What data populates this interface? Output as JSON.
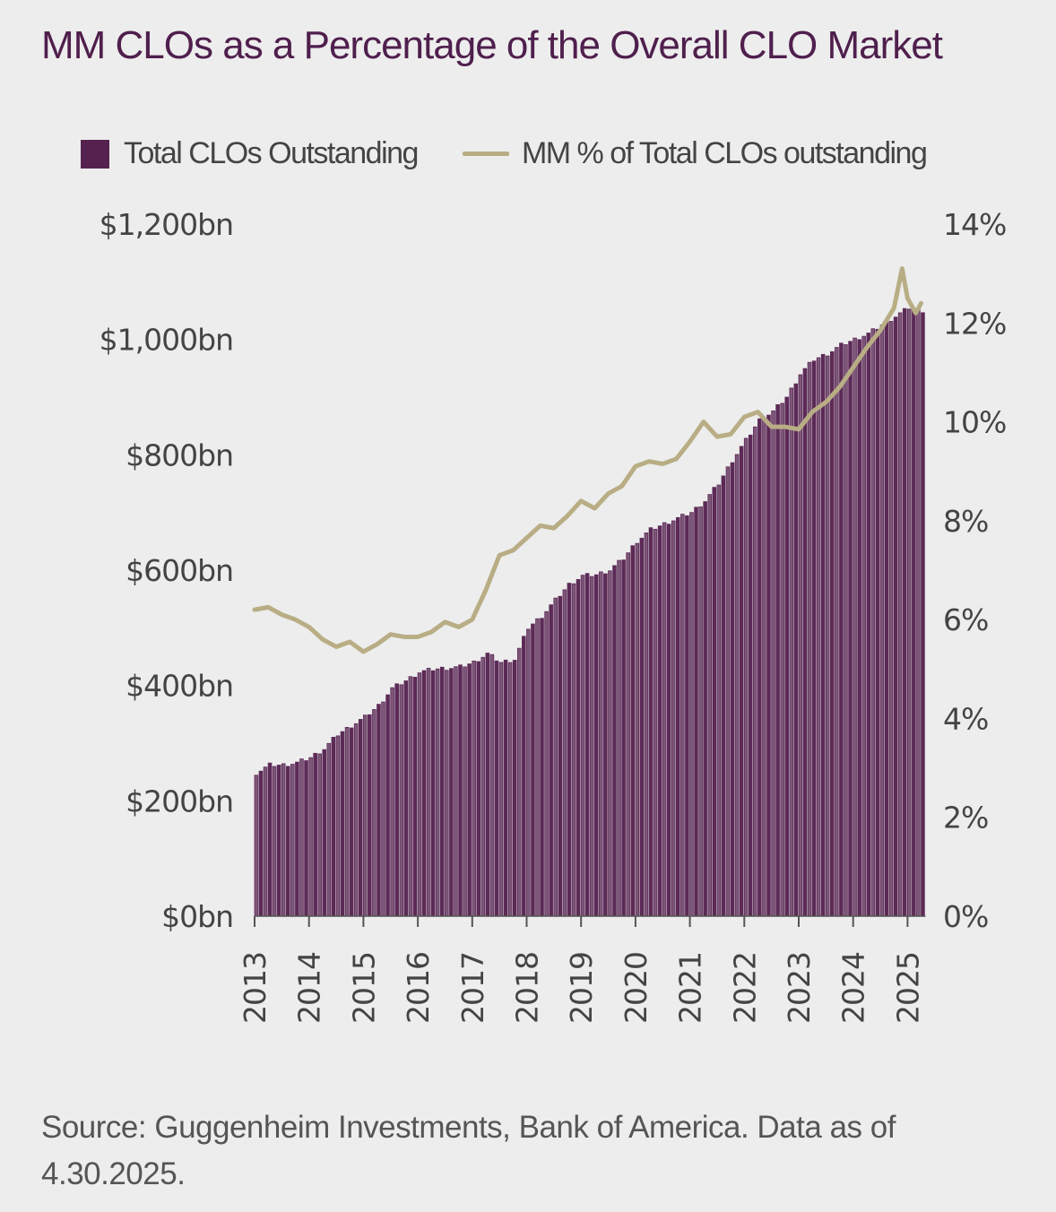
{
  "title": "MM CLOs as a Percentage of the Overall CLO Market",
  "source": "Source: Guggenheim Investments, Bank of America. Data as of 4.30.2025.",
  "colors": {
    "bar": "#5c2a56",
    "bar_edge": "#7d5779",
    "line": "#b8ad84",
    "title": "#4f1f4d",
    "text": "#444444",
    "background": "#ededed"
  },
  "chart_data": {
    "type": "bar",
    "combo": "bar+line (dual axis)",
    "title": "MM CLOs as a Percentage of the Overall CLO Market",
    "legend": {
      "position": "top",
      "entries": [
        "Total CLOs Outstanding",
        "MM % of Total CLOs outstanding"
      ]
    },
    "x_ticks": [
      "2013",
      "2014",
      "2015",
      "2016",
      "2017",
      "2018",
      "2019",
      "2020",
      "2021",
      "2022",
      "2023",
      "2024",
      "2025"
    ],
    "xlim": [
      2013.0,
      2025.33
    ],
    "y_left": {
      "label": "",
      "ticks": [
        "$0bn",
        "$200bn",
        "$400bn",
        "$600bn",
        "$800bn",
        "$1,000bn",
        "$1,200bn"
      ],
      "range": [
        0,
        1200
      ],
      "unit": "$bn"
    },
    "y_right": {
      "label": "",
      "ticks": [
        "0%",
        "2%",
        "4%",
        "6%",
        "8%",
        "10%",
        "12%",
        "14%"
      ],
      "range": [
        0,
        14
      ],
      "unit": "%"
    },
    "grid": false,
    "series": [
      {
        "name": "Total CLOs Outstanding",
        "type": "bar",
        "axis": "left",
        "x": [
          2013.0,
          2013.25,
          2013.5,
          2013.75,
          2014.0,
          2014.25,
          2014.5,
          2014.75,
          2015.0,
          2015.25,
          2015.5,
          2015.75,
          2016.0,
          2016.25,
          2016.5,
          2016.75,
          2017.0,
          2017.25,
          2017.5,
          2017.75,
          2018.0,
          2018.25,
          2018.5,
          2018.75,
          2019.0,
          2019.25,
          2019.5,
          2019.75,
          2020.0,
          2020.25,
          2020.5,
          2020.75,
          2021.0,
          2021.25,
          2021.5,
          2021.75,
          2022.0,
          2022.25,
          2022.5,
          2022.75,
          2023.0,
          2023.25,
          2023.5,
          2023.75,
          2024.0,
          2024.25,
          2024.5,
          2024.75,
          2025.0,
          2025.25
        ],
        "values": [
          248,
          262,
          262,
          266,
          275,
          290,
          315,
          330,
          345,
          365,
          395,
          408,
          423,
          428,
          430,
          432,
          440,
          455,
          440,
          445,
          500,
          520,
          548,
          575,
          590,
          592,
          600,
          620,
          650,
          670,
          680,
          690,
          700,
          720,
          750,
          790,
          825,
          860,
          875,
          900,
          940,
          965,
          975,
          990,
          1000,
          1010,
          1025,
          1040,
          1055,
          1050
        ]
      },
      {
        "name": "MM % of Total CLOs outstanding",
        "type": "line",
        "axis": "right",
        "x": [
          2013.0,
          2013.25,
          2013.5,
          2013.75,
          2014.0,
          2014.25,
          2014.5,
          2014.75,
          2015.0,
          2015.25,
          2015.5,
          2015.75,
          2016.0,
          2016.25,
          2016.5,
          2016.75,
          2017.0,
          2017.25,
          2017.5,
          2017.75,
          2018.0,
          2018.25,
          2018.5,
          2018.75,
          2019.0,
          2019.25,
          2019.5,
          2019.75,
          2020.0,
          2020.25,
          2020.5,
          2020.75,
          2021.0,
          2021.25,
          2021.5,
          2021.75,
          2022.0,
          2022.25,
          2022.5,
          2022.75,
          2023.0,
          2023.25,
          2023.5,
          2023.75,
          2024.0,
          2024.25,
          2024.5,
          2024.75,
          2024.9,
          2025.0,
          2025.15,
          2025.25
        ],
        "values": [
          6.2,
          6.25,
          6.1,
          6.0,
          5.85,
          5.6,
          5.45,
          5.55,
          5.35,
          5.5,
          5.7,
          5.65,
          5.65,
          5.75,
          5.95,
          5.85,
          6.0,
          6.6,
          7.3,
          7.4,
          7.65,
          7.9,
          7.85,
          8.1,
          8.4,
          8.25,
          8.55,
          8.7,
          9.1,
          9.2,
          9.15,
          9.25,
          9.6,
          10.0,
          9.7,
          9.75,
          10.1,
          10.2,
          9.9,
          9.9,
          9.85,
          10.2,
          10.4,
          10.7,
          11.1,
          11.5,
          11.85,
          12.3,
          13.1,
          12.5,
          12.2,
          12.4
        ]
      }
    ]
  }
}
